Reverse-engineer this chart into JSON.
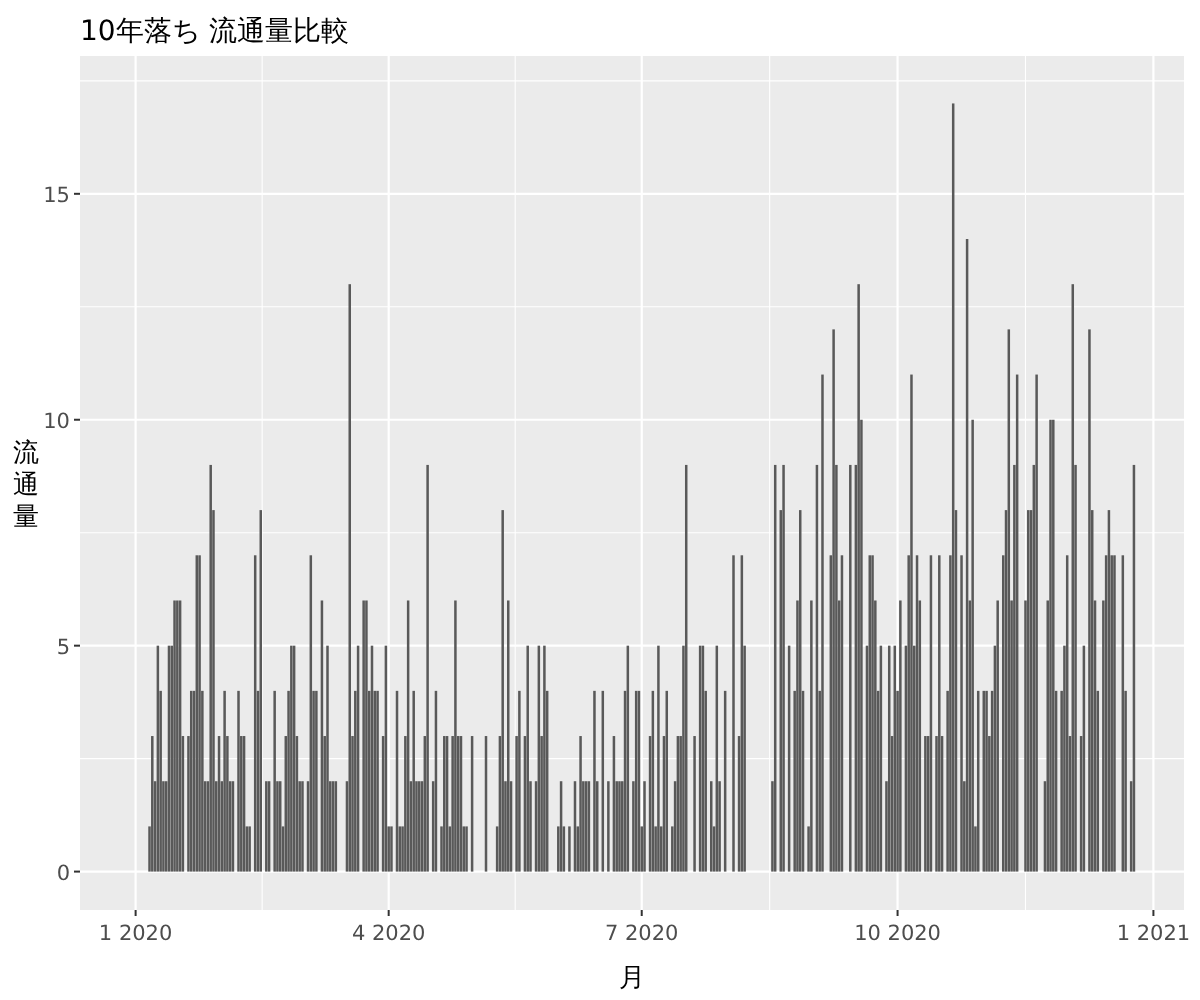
{
  "chart_data": {
    "type": "bar",
    "title": "10年落ち 流通量比較",
    "xlabel": "月",
    "ylabel": "流通量",
    "color": "#595959",
    "grid": true,
    "xlim": [
      "2019-12-12",
      "2021-01-12"
    ],
    "ylim": [
      -0.85,
      18.05
    ],
    "xticks": [
      {
        "value": "2020-01-01",
        "label": "1 2020"
      },
      {
        "value": "2020-04-01",
        "label": "4 2020"
      },
      {
        "value": "2020-07-01",
        "label": "7 2020"
      },
      {
        "value": "2020-10-01",
        "label": "10 2020"
      },
      {
        "value": "2021-01-01",
        "label": "1 2021"
      }
    ],
    "yticks": [
      0,
      5,
      10,
      15
    ],
    "x": [
      "2020-01-06",
      "2020-01-07",
      "2020-01-08",
      "2020-01-09",
      "2020-01-10",
      "2020-01-11",
      "2020-01-12",
      "2020-01-13",
      "2020-01-14",
      "2020-01-15",
      "2020-01-16",
      "2020-01-17",
      "2020-01-18",
      "2020-01-20",
      "2020-01-21",
      "2020-01-22",
      "2020-01-23",
      "2020-01-24",
      "2020-01-25",
      "2020-01-26",
      "2020-01-27",
      "2020-01-28",
      "2020-01-29",
      "2020-01-30",
      "2020-01-31",
      "2020-02-01",
      "2020-02-02",
      "2020-02-03",
      "2020-02-04",
      "2020-02-05",
      "2020-02-07",
      "2020-02-08",
      "2020-02-09",
      "2020-02-10",
      "2020-02-11",
      "2020-02-13",
      "2020-02-14",
      "2020-02-15",
      "2020-02-17",
      "2020-02-18",
      "2020-02-20",
      "2020-02-21",
      "2020-02-22",
      "2020-02-23",
      "2020-02-24",
      "2020-02-25",
      "2020-02-26",
      "2020-02-27",
      "2020-02-28",
      "2020-02-29",
      "2020-03-01",
      "2020-03-03",
      "2020-03-04",
      "2020-03-05",
      "2020-03-06",
      "2020-03-08",
      "2020-03-09",
      "2020-03-10",
      "2020-03-11",
      "2020-03-12",
      "2020-03-13",
      "2020-03-17",
      "2020-03-18",
      "2020-03-19",
      "2020-03-20",
      "2020-03-21",
      "2020-03-23",
      "2020-03-24",
      "2020-03-25",
      "2020-03-26",
      "2020-03-27",
      "2020-03-28",
      "2020-03-30",
      "2020-03-31",
      "2020-04-01",
      "2020-04-02",
      "2020-04-04",
      "2020-04-05",
      "2020-04-06",
      "2020-04-07",
      "2020-04-08",
      "2020-04-09",
      "2020-04-10",
      "2020-04-11",
      "2020-04-12",
      "2020-04-13",
      "2020-04-14",
      "2020-04-15",
      "2020-04-17",
      "2020-04-18",
      "2020-04-20",
      "2020-04-21",
      "2020-04-22",
      "2020-04-23",
      "2020-04-24",
      "2020-04-25",
      "2020-04-26",
      "2020-04-27",
      "2020-04-28",
      "2020-04-29",
      "2020-05-01",
      "2020-05-06",
      "2020-05-10",
      "2020-05-11",
      "2020-05-12",
      "2020-05-13",
      "2020-05-14",
      "2020-05-15",
      "2020-05-17",
      "2020-05-18",
      "2020-05-20",
      "2020-05-21",
      "2020-05-22",
      "2020-05-24",
      "2020-05-25",
      "2020-05-26",
      "2020-05-27",
      "2020-05-28",
      "2020-06-01",
      "2020-06-02",
      "2020-06-03",
      "2020-06-05",
      "2020-06-07",
      "2020-06-08",
      "2020-06-09",
      "2020-06-10",
      "2020-06-11",
      "2020-06-12",
      "2020-06-14",
      "2020-06-15",
      "2020-06-17",
      "2020-06-19",
      "2020-06-21",
      "2020-06-22",
      "2020-06-23",
      "2020-06-24",
      "2020-06-25",
      "2020-06-26",
      "2020-06-28",
      "2020-06-29",
      "2020-06-30",
      "2020-07-01",
      "2020-07-02",
      "2020-07-04",
      "2020-07-05",
      "2020-07-06",
      "2020-07-07",
      "2020-07-08",
      "2020-07-09",
      "2020-07-10",
      "2020-07-12",
      "2020-07-13",
      "2020-07-14",
      "2020-07-15",
      "2020-07-16",
      "2020-07-17",
      "2020-07-20",
      "2020-07-22",
      "2020-07-23",
      "2020-07-24",
      "2020-07-26",
      "2020-07-27",
      "2020-07-28",
      "2020-07-29",
      "2020-07-31",
      "2020-08-03",
      "2020-08-05",
      "2020-08-06",
      "2020-08-07",
      "2020-08-17",
      "2020-08-18",
      "2020-08-20",
      "2020-08-21",
      "2020-08-23",
      "2020-08-25",
      "2020-08-26",
      "2020-08-27",
      "2020-08-28",
      "2020-08-30",
      "2020-08-31",
      "2020-09-02",
      "2020-09-03",
      "2020-09-04",
      "2020-09-07",
      "2020-09-08",
      "2020-09-09",
      "2020-09-10",
      "2020-09-11",
      "2020-09-14",
      "2020-09-16",
      "2020-09-17",
      "2020-09-18",
      "2020-09-20",
      "2020-09-21",
      "2020-09-22",
      "2020-09-23",
      "2020-09-24",
      "2020-09-25",
      "2020-09-27",
      "2020-09-28",
      "2020-09-29",
      "2020-09-30",
      "2020-10-01",
      "2020-10-02",
      "2020-10-04",
      "2020-10-05",
      "2020-10-06",
      "2020-10-07",
      "2020-10-08",
      "2020-10-09",
      "2020-10-11",
      "2020-10-12",
      "2020-10-13",
      "2020-10-15",
      "2020-10-16",
      "2020-10-17",
      "2020-10-19",
      "2020-10-20",
      "2020-10-21",
      "2020-10-22",
      "2020-10-24",
      "2020-10-25",
      "2020-10-26",
      "2020-10-27",
      "2020-10-28",
      "2020-10-29",
      "2020-10-30",
      "2020-11-01",
      "2020-11-02",
      "2020-11-03",
      "2020-11-04",
      "2020-11-05",
      "2020-11-06",
      "2020-11-08",
      "2020-11-09",
      "2020-11-10",
      "2020-11-11",
      "2020-11-12",
      "2020-11-13",
      "2020-11-16",
      "2020-11-17",
      "2020-11-18",
      "2020-11-19",
      "2020-11-20",
      "2020-11-23",
      "2020-11-24",
      "2020-11-25",
      "2020-11-26",
      "2020-11-27",
      "2020-11-29",
      "2020-11-30",
      "2020-12-01",
      "2020-12-02",
      "2020-12-03",
      "2020-12-04",
      "2020-12-06",
      "2020-12-07",
      "2020-12-09",
      "2020-12-10",
      "2020-12-11",
      "2020-12-12",
      "2020-12-14",
      "2020-12-15",
      "2020-12-16",
      "2020-12-17",
      "2020-12-18",
      "2020-12-21",
      "2020-12-22",
      "2020-12-24",
      "2020-12-25"
    ],
    "values": [
      1,
      3,
      2,
      5,
      4,
      2,
      2,
      5,
      5,
      6,
      6,
      6,
      3,
      3,
      4,
      4,
      7,
      7,
      4,
      2,
      2,
      9,
      8,
      2,
      3,
      2,
      4,
      3,
      2,
      2,
      4,
      3,
      3,
      1,
      1,
      7,
      4,
      8,
      2,
      2,
      4,
      2,
      2,
      1,
      3,
      4,
      5,
      5,
      3,
      2,
      2,
      2,
      7,
      4,
      4,
      6,
      3,
      5,
      2,
      2,
      2,
      2,
      13,
      3,
      4,
      5,
      6,
      6,
      4,
      5,
      4,
      4,
      3,
      5,
      1,
      1,
      4,
      1,
      1,
      3,
      6,
      2,
      4,
      2,
      2,
      2,
      3,
      9,
      2,
      4,
      1,
      3,
      3,
      1,
      3,
      6,
      3,
      3,
      1,
      1,
      3,
      3,
      1,
      3,
      8,
      2,
      6,
      2,
      3,
      4,
      3,
      5,
      2,
      2,
      5,
      3,
      5,
      4,
      1,
      2,
      1,
      1,
      2,
      1,
      3,
      2,
      2,
      2,
      4,
      2,
      4,
      2,
      3,
      2,
      2,
      2,
      4,
      5,
      2,
      4,
      4,
      1,
      2,
      3,
      4,
      1,
      5,
      1,
      3,
      4,
      1,
      2,
      3,
      3,
      5,
      9,
      3,
      5,
      5,
      4,
      2,
      1,
      5,
      2,
      4,
      7,
      3,
      7,
      5,
      2,
      9,
      8,
      9,
      5,
      4,
      6,
      8,
      4,
      1,
      6,
      9,
      4,
      11,
      7,
      12,
      9,
      6,
      7,
      9,
      9,
      13,
      10,
      5,
      7,
      7,
      6,
      4,
      5,
      2,
      5,
      3,
      5,
      4,
      6,
      5,
      7,
      11,
      5,
      7,
      6,
      3,
      3,
      7,
      3,
      7,
      3,
      4,
      7,
      17,
      8,
      7,
      2,
      14,
      6,
      10,
      1,
      4,
      4,
      4,
      3,
      4,
      5,
      6,
      7,
      8,
      12,
      6,
      9,
      11,
      6,
      8,
      8,
      9,
      11,
      2,
      6,
      10,
      10,
      4,
      4,
      5,
      7,
      3,
      13,
      9,
      3,
      5,
      12,
      8,
      6,
      4,
      6,
      7,
      8,
      7,
      7,
      7,
      4,
      2,
      9
    ]
  }
}
